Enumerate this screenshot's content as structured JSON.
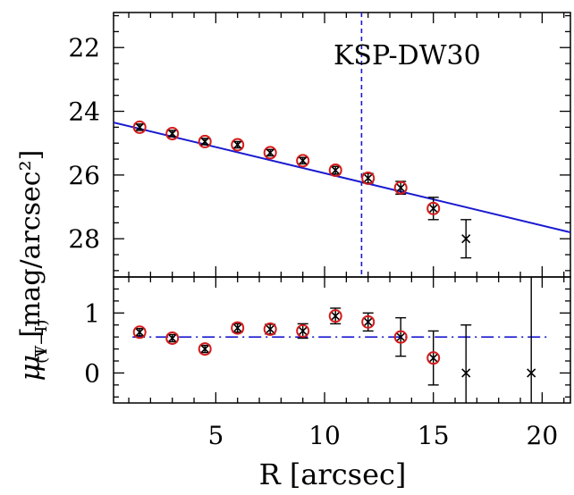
{
  "chart_data": [
    {
      "panel": "top",
      "type": "scatter",
      "ylabel_symbol": "μ",
      "ylabel_sub": "I",
      "ylabel_units": "[mag/arcsec²]",
      "annotation": "KSP-DW30",
      "xlim": [
        0.3,
        21.3
      ],
      "ylim": [
        29.2,
        20.9
      ],
      "y_inverted": true,
      "yticks": [
        22,
        24,
        26,
        28
      ],
      "xticks": [
        5,
        10,
        15,
        20
      ],
      "series": [
        {
          "marker": "circle-and-cross",
          "x": [
            1.5,
            3.0,
            4.5,
            6.0,
            7.5,
            9.0,
            10.5,
            12.0,
            13.5,
            15.0
          ],
          "y": [
            24.5,
            24.7,
            24.95,
            25.05,
            25.3,
            25.55,
            25.85,
            26.1,
            26.4,
            27.05
          ],
          "yerr": [
            0.1,
            0.1,
            0.1,
            0.1,
            0.1,
            0.1,
            0.12,
            0.15,
            0.2,
            0.35
          ]
        },
        {
          "marker": "cross-only",
          "x": [
            16.5
          ],
          "y": [
            28.0
          ],
          "yerr": [
            0.6
          ]
        }
      ],
      "fit_line": {
        "x": [
          0.3,
          21.3
        ],
        "y": [
          24.35,
          27.8
        ],
        "color": "#1a1ad0"
      },
      "vline": {
        "x": 11.7,
        "style": "dashed",
        "color": "#1a1ad0"
      }
    },
    {
      "panel": "bottom",
      "type": "scatter",
      "ylabel_symbol": "μ",
      "ylabel_sub": "(V−I)",
      "xlabel": "R [arcsec]",
      "xlim": [
        0.3,
        21.3
      ],
      "ylim": [
        -0.5,
        1.6
      ],
      "yticks": [
        0,
        1
      ],
      "xticks": [
        5,
        10,
        15,
        20
      ],
      "series": [
        {
          "marker": "circle-and-cross",
          "x": [
            1.5,
            3.0,
            4.5,
            6.0,
            7.5,
            9.0,
            10.5,
            12.0,
            13.5,
            15.0
          ],
          "y": [
            0.68,
            0.58,
            0.4,
            0.75,
            0.73,
            0.7,
            0.95,
            0.85,
            0.6,
            0.25
          ],
          "yerr": [
            0.06,
            0.06,
            0.06,
            0.07,
            0.08,
            0.12,
            0.13,
            0.15,
            0.32,
            0.45
          ]
        },
        {
          "marker": "cross-only",
          "x": [
            16.5,
            19.5
          ],
          "y": [
            0.0,
            0.0
          ],
          "yerr": [
            0.8,
            1.75
          ]
        }
      ],
      "hline": {
        "y": 0.6,
        "style": "dash-dot",
        "color": "#1a1ad0"
      }
    }
  ],
  "colors": {
    "marker_circle": "#d41a1a",
    "marker_cross": "#000000",
    "fit": "#1a1ad0"
  }
}
